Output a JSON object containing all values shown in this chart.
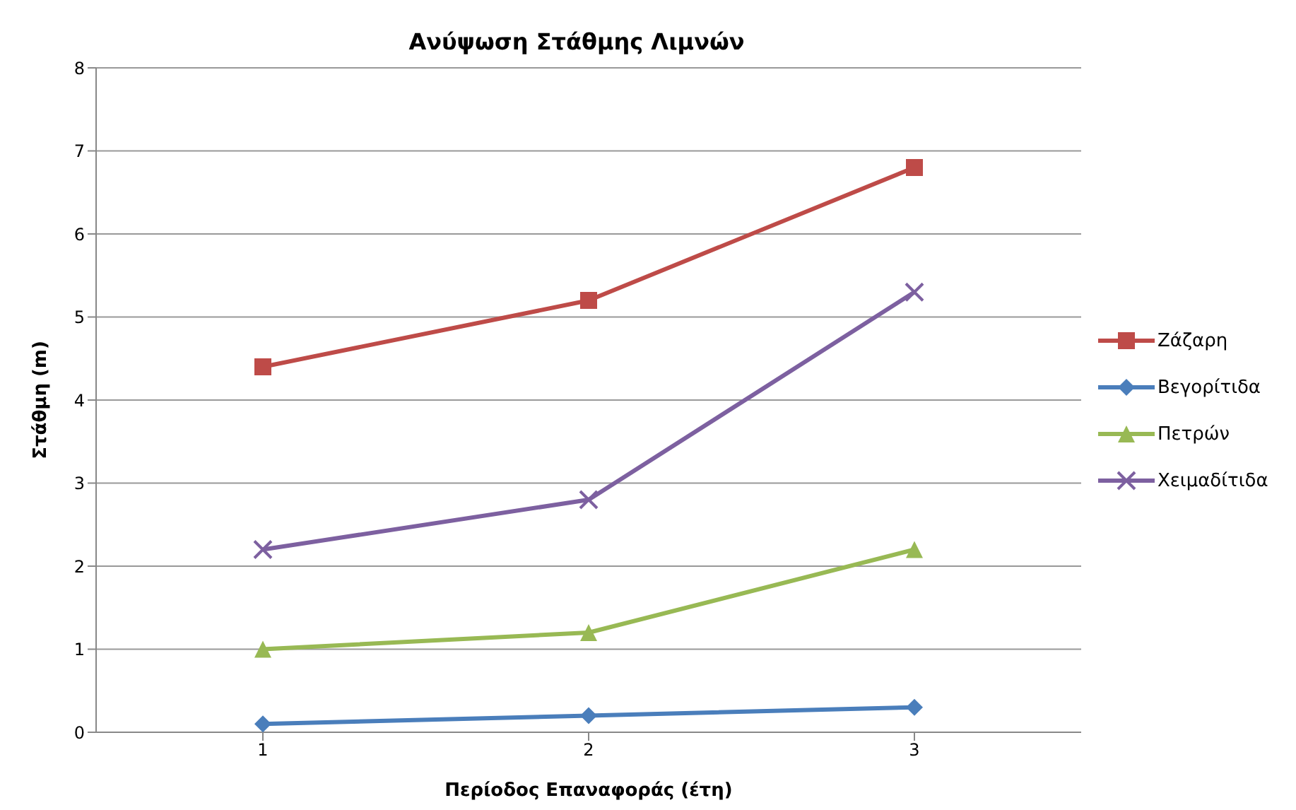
{
  "chart_data": {
    "type": "line",
    "title": "Ανύψωση Στάθμης Λιμνών",
    "xlabel": "Περίοδος Επαναφοράς (έτη)",
    "ylabel": "Στάθμη (m)",
    "categories": [
      "1",
      "2",
      "3"
    ],
    "ylim": [
      0,
      8
    ],
    "yticks": [
      0,
      1,
      2,
      3,
      4,
      5,
      6,
      7,
      8
    ],
    "grid": "y",
    "legend": "right",
    "line_style": "solid",
    "series": [
      {
        "name": "Ζάζαρη",
        "color": "#be4b48",
        "marker": "square",
        "values": [
          4.4,
          5.2,
          6.8
        ]
      },
      {
        "name": "Βεγορίτιδα",
        "color": "#4a7ebb",
        "marker": "diamond",
        "values": [
          0.1,
          0.2,
          0.3
        ]
      },
      {
        "name": "Πετρών",
        "color": "#98b954",
        "marker": "triangle",
        "values": [
          1.0,
          1.2,
          2.2
        ]
      },
      {
        "name": "Χειμαδίτιδα",
        "color": "#7d60a0",
        "marker": "cross",
        "values": [
          2.2,
          2.8,
          5.3
        ]
      }
    ]
  }
}
